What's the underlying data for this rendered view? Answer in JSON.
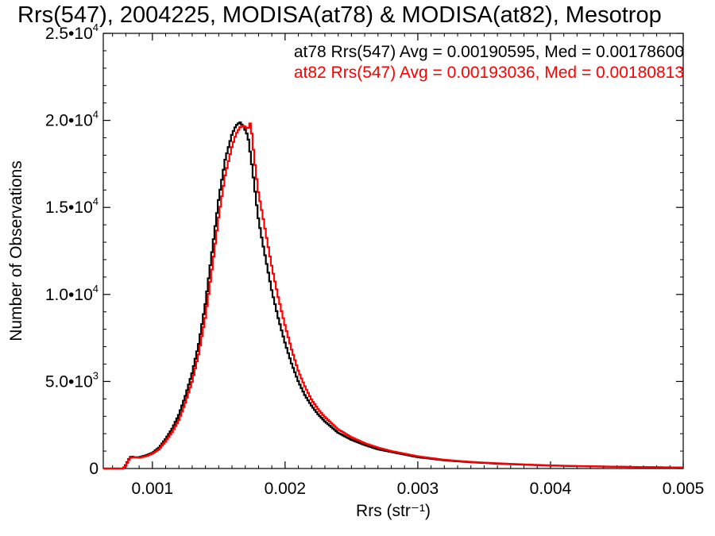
{
  "chart_data": {
    "type": "line",
    "title": "Rrs(547), 2004225, MODISA(at78) & MODISA(at82), Mesotrop",
    "xlabel": "Rrs (str⁻¹)",
    "ylabel": "Number of Observations",
    "xlim": [
      0.00063,
      0.005
    ],
    "ylim": [
      0,
      25000
    ],
    "grid": false,
    "xticks": [
      {
        "value": 0.001,
        "label": "0.001"
      },
      {
        "value": 0.002,
        "label": "0.002"
      },
      {
        "value": 0.003,
        "label": "0.003"
      },
      {
        "value": 0.004,
        "label": "0.004"
      },
      {
        "value": 0.005,
        "label": "0.005"
      }
    ],
    "yticks": [
      {
        "value": 0,
        "mant": "0",
        "exp": ""
      },
      {
        "value": 5000,
        "mant": "5.0•10",
        "exp": "3"
      },
      {
        "value": 10000,
        "mant": "1.0•10",
        "exp": "4"
      },
      {
        "value": 15000,
        "mant": "1.5•10",
        "exp": "4"
      },
      {
        "value": 20000,
        "mant": "2.0•10",
        "exp": "4"
      },
      {
        "value": 25000,
        "mant": "2.5•10",
        "exp": "4"
      }
    ],
    "legend_placement": "top-right",
    "series": [
      {
        "name": "at78",
        "legend": "at78 Rrs(547) Avg = 0.00190595, Med = 0.00178600",
        "color": "#000000",
        "x": [
          0.00063,
          0.00078,
          0.0008,
          0.00082,
          0.00084,
          0.00086,
          0.0009,
          0.00095,
          0.001,
          0.00105,
          0.0011,
          0.00115,
          0.0012,
          0.00125,
          0.0013,
          0.00135,
          0.0014,
          0.00145,
          0.0015,
          0.00155,
          0.0016,
          0.00163,
          0.00166,
          0.00169,
          0.00172,
          0.00174,
          0.00176,
          0.00178,
          0.0018,
          0.00183,
          0.00186,
          0.0019,
          0.00195,
          0.002,
          0.00205,
          0.0021,
          0.00215,
          0.0022,
          0.00225,
          0.0023,
          0.0024,
          0.0025,
          0.0026,
          0.0027,
          0.0028,
          0.003,
          0.0032,
          0.0034,
          0.0036,
          0.0038,
          0.004,
          0.0042,
          0.0044,
          0.0046,
          0.0048,
          0.005
        ],
        "y": [
          0,
          0,
          200,
          500,
          700,
          650,
          650,
          750,
          900,
          1200,
          1700,
          2300,
          3100,
          4200,
          5500,
          7200,
          9500,
          12500,
          15500,
          17800,
          19200,
          19700,
          19900,
          19600,
          19100,
          18000,
          16800,
          15500,
          14300,
          13000,
          11800,
          10200,
          8600,
          7200,
          6000,
          5000,
          4200,
          3600,
          3100,
          2700,
          2050,
          1650,
          1350,
          1100,
          950,
          650,
          470,
          360,
          280,
          220,
          170,
          135,
          110,
          90,
          70,
          55
        ]
      },
      {
        "name": "at82",
        "legend": "at82 Rrs(547) Avg = 0.00193036, Med = 0.00180813",
        "color": "#ff0000",
        "x": [
          0.00063,
          0.00078,
          0.0008,
          0.00082,
          0.00084,
          0.00086,
          0.0009,
          0.00095,
          0.001,
          0.00105,
          0.0011,
          0.00115,
          0.0012,
          0.00125,
          0.0013,
          0.00135,
          0.0014,
          0.00145,
          0.0015,
          0.00155,
          0.0016,
          0.00163,
          0.00166,
          0.00169,
          0.00172,
          0.00174,
          0.00176,
          0.00178,
          0.0018,
          0.00183,
          0.00186,
          0.0019,
          0.00195,
          0.002,
          0.00205,
          0.0021,
          0.00215,
          0.0022,
          0.00225,
          0.0023,
          0.0024,
          0.0025,
          0.0026,
          0.0027,
          0.0028,
          0.003,
          0.0032,
          0.0034,
          0.0036,
          0.0038,
          0.004,
          0.0042,
          0.0044,
          0.0046,
          0.0048,
          0.005
        ],
        "y": [
          0,
          0,
          150,
          450,
          650,
          650,
          620,
          700,
          850,
          1100,
          1550,
          2100,
          2800,
          3800,
          5000,
          6600,
          8700,
          11500,
          14500,
          16900,
          18500,
          19200,
          19600,
          19700,
          19500,
          19900,
          18400,
          17000,
          15800,
          14600,
          13300,
          11600,
          9800,
          8200,
          6800,
          5600,
          4700,
          3950,
          3400,
          2950,
          2250,
          1800,
          1450,
          1200,
          1000,
          700,
          500,
          380,
          300,
          235,
          180,
          145,
          115,
          95,
          75,
          60
        ]
      }
    ]
  }
}
